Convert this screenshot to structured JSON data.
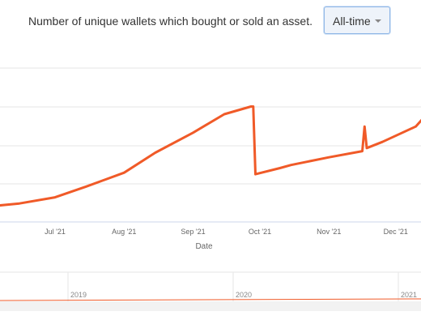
{
  "header": {
    "description": "Number of unique wallets which bought or sold an asset.",
    "range_select": {
      "selected": "All-time"
    }
  },
  "chart_data": {
    "type": "line",
    "title": "",
    "xlabel": "Date",
    "ylabel": "",
    "x_ticks": [
      "Jul '21",
      "Aug '21",
      "Sep '21",
      "Oct '21",
      "Nov '21",
      "Dec '21"
    ],
    "series": [
      {
        "color": "#f05a28",
        "x": [
          "2021-06-01",
          "2021-06-15",
          "2021-07-01",
          "2021-07-15",
          "2021-08-01",
          "2021-08-15",
          "2021-09-01",
          "2021-09-15",
          "2021-09-27",
          "2021-09-28",
          "2021-09-29",
          "2021-10-10",
          "2021-10-15",
          "2021-11-01",
          "2021-11-16",
          "2021-11-17",
          "2021-11-18",
          "2021-11-25",
          "2021-12-10",
          "2021-12-20"
        ],
        "values": [
          10,
          12,
          16,
          23,
          32,
          45,
          58,
          70,
          75,
          75,
          31,
          35,
          37,
          42,
          46,
          62,
          48,
          52,
          62,
          78
        ]
      }
    ],
    "y_grid": true,
    "navigator": {
      "years": [
        "2019",
        "2020",
        "2021"
      ]
    }
  }
}
